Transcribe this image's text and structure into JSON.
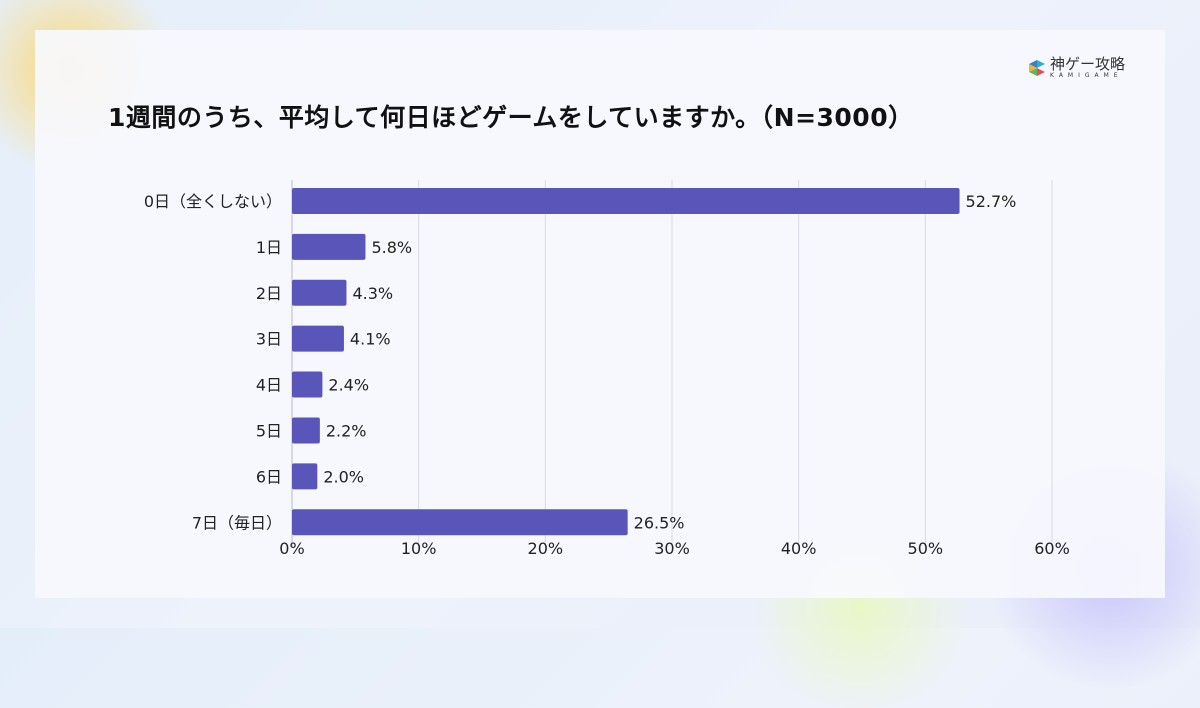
{
  "logo": {
    "name": "神ゲー攻略",
    "sub": "KAMIGAME"
  },
  "chart_data": {
    "type": "bar",
    "orientation": "horizontal",
    "title": "1週間のうち、平均して何日ほどゲームをしていますか。（N=3000）",
    "categories": [
      "0日（全くしない）",
      "1日",
      "2日",
      "3日",
      "4日",
      "5日",
      "6日",
      "7日（毎日）"
    ],
    "values": [
      52.7,
      5.8,
      4.3,
      4.1,
      2.4,
      2.2,
      2.0,
      26.5
    ],
    "value_labels": [
      "52.7%",
      "5.8%",
      "4.3%",
      "4.1%",
      "2.4%",
      "2.2%",
      "2.0%",
      "26.5%"
    ],
    "xlim": [
      0,
      60
    ],
    "xticks": [
      "0%",
      "10%",
      "20%",
      "30%",
      "40%",
      "50%",
      "60%"
    ],
    "grid": true,
    "colors": {
      "bar": "#5a55b8",
      "grid": "#d9d9e3"
    }
  }
}
